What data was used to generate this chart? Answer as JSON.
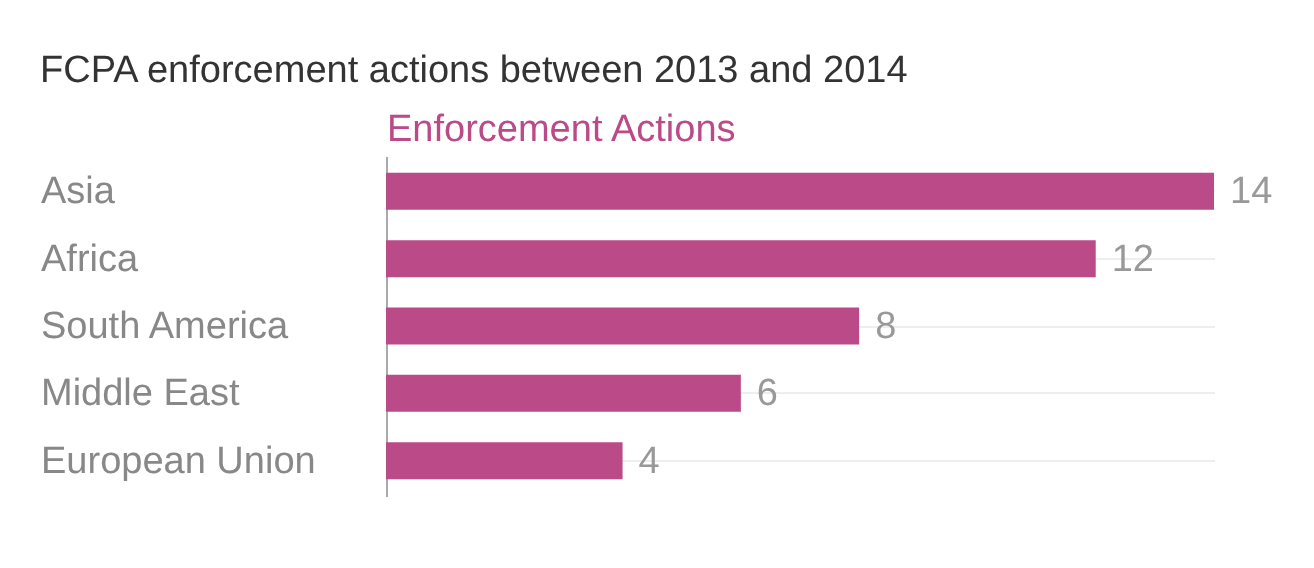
{
  "chart_data": {
    "type": "bar",
    "orientation": "horizontal",
    "title": "FCPA enforcement actions between 2013 and 2014",
    "categories": [
      "Asia",
      "Africa",
      "South America",
      "Middle East",
      "European Union"
    ],
    "series": [
      {
        "name": "Enforcement Actions",
        "color": "#bb4a88",
        "values": [
          14,
          12,
          8,
          6,
          4
        ]
      }
    ],
    "data_labels": true,
    "grid": "y"
  }
}
